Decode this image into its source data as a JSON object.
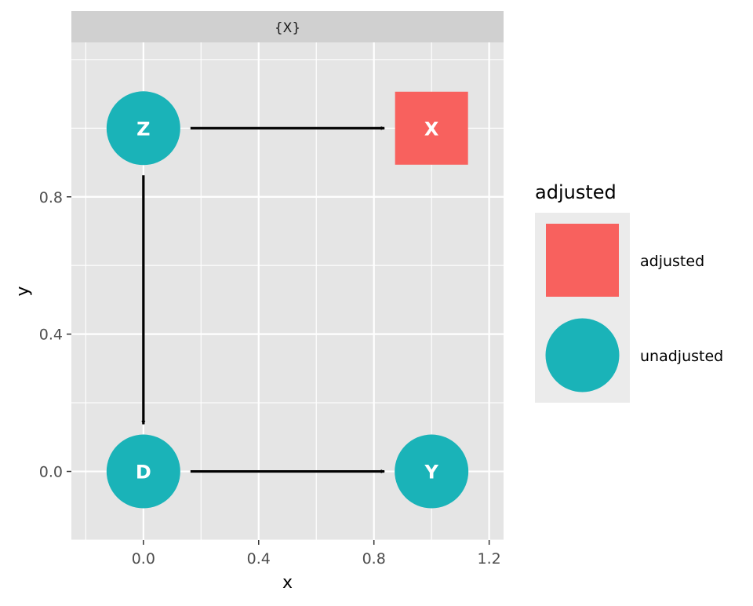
{
  "panel": {
    "strip_label": "{X}"
  },
  "axes": {
    "x": {
      "title": "x",
      "range": [
        -0.25,
        1.25
      ],
      "ticks": [
        0.0,
        0.4,
        0.8,
        1.2
      ],
      "tick_labels": [
        "0.0",
        "0.4",
        "0.8",
        "1.2"
      ]
    },
    "y": {
      "title": "y",
      "range": [
        -0.2,
        1.25
      ],
      "ticks": [
        0.0,
        0.4,
        0.8
      ],
      "tick_labels": [
        "0.0",
        "0.4",
        "0.8"
      ]
    },
    "grid": true
  },
  "nodes": [
    {
      "id": "Z",
      "label": "Z",
      "x": 0,
      "y": 1,
      "status": "unadjusted"
    },
    {
      "id": "X",
      "label": "X",
      "x": 1,
      "y": 1,
      "status": "adjusted"
    },
    {
      "id": "D",
      "label": "D",
      "x": 0,
      "y": 0,
      "status": "unadjusted"
    },
    {
      "id": "Y",
      "label": "Y",
      "x": 1,
      "y": 0,
      "status": "unadjusted"
    }
  ],
  "edges": [
    {
      "from": "Z",
      "to": "X"
    },
    {
      "from": "Z",
      "to": "D"
    },
    {
      "from": "D",
      "to": "Y"
    }
  ],
  "legend": {
    "title": "adjusted",
    "placement": "right",
    "items": [
      {
        "key": "adjusted",
        "label": "adjusted",
        "shape": "square",
        "color": "#F8615E"
      },
      {
        "key": "unadjusted",
        "label": "unadjusted",
        "shape": "circle",
        "color": "#1AB3B8"
      }
    ]
  },
  "colors": {
    "adjusted": "#F8615E",
    "unadjusted": "#1AB3B8",
    "panel_background": "#E5E5E5",
    "strip_background": "#D0D0D0",
    "grid": "#FFFFFF",
    "edge": "#000000"
  }
}
